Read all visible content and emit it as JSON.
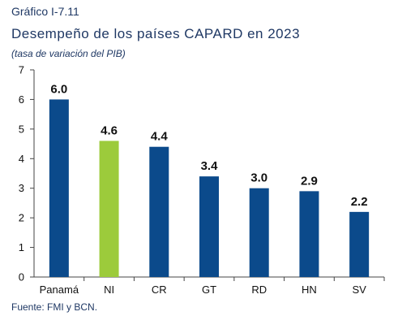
{
  "header": {
    "label": "Gráfico I-7.11",
    "title": "Desempeño de los países CAPARD en 2023",
    "subtitle": "(tasa de variación del PIB)"
  },
  "footer": {
    "source": "Fuente: FMI y BCN."
  },
  "chart_data": {
    "type": "bar",
    "categories": [
      "Panamá",
      "NI",
      "CR",
      "GT",
      "RD",
      "HN",
      "SV"
    ],
    "values": [
      6.0,
      4.6,
      4.4,
      3.4,
      3.0,
      2.9,
      2.2
    ],
    "value_labels": [
      "6.0",
      "4.6",
      "4.4",
      "3.4",
      "3.0",
      "2.9",
      "2.2"
    ],
    "yticks": [
      0,
      1,
      2,
      3,
      4,
      5,
      6,
      7
    ],
    "ylim": [
      0,
      7
    ],
    "grid": false,
    "legend": "none",
    "colors": {
      "default": "#0b4a8b",
      "highlight": "#9ccb3b",
      "highlight_category": "NI",
      "axis": "#444444",
      "label_text": "#111111"
    }
  }
}
